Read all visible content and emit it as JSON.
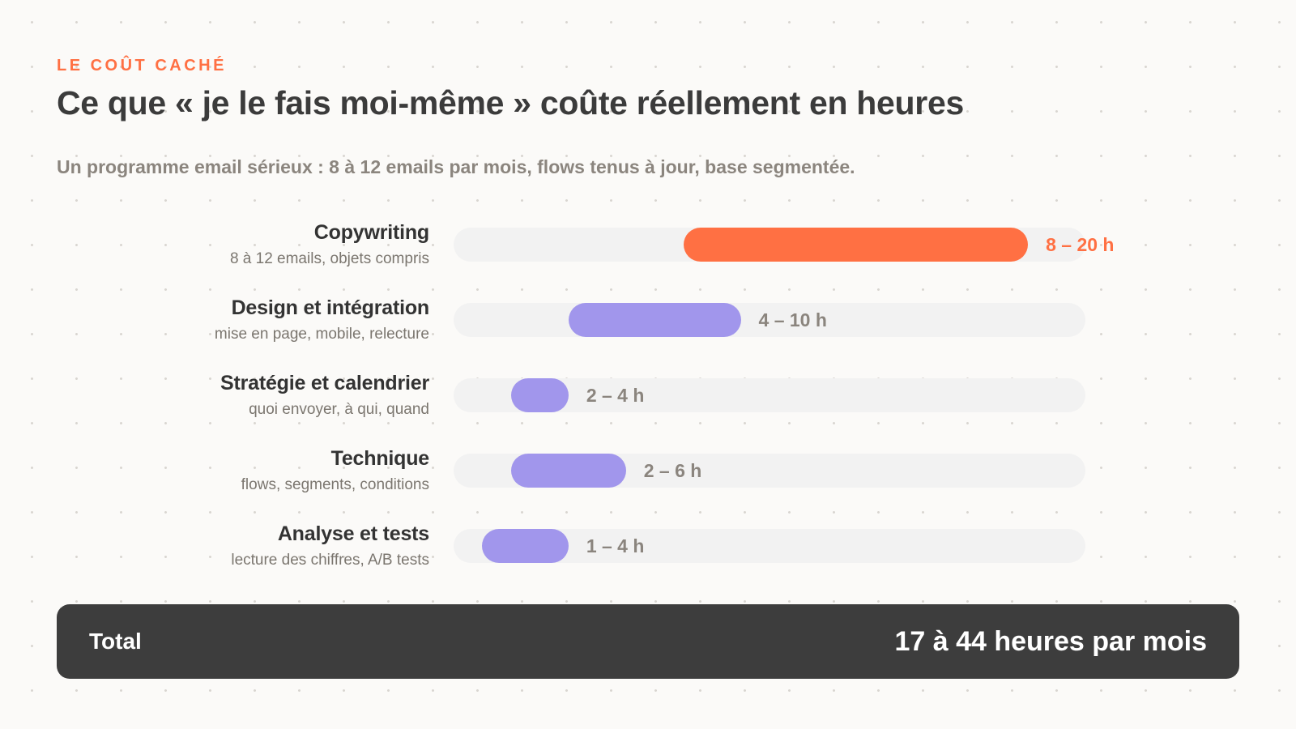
{
  "header": {
    "eyebrow": "LE COÛT CACHÉ",
    "title": "Ce que « je le fais moi-même » coûte réellement en heures",
    "subtitle": "Un programme email sérieux : 8 à 12 emails par mois, flows tenus à jour, base segmentée."
  },
  "colors": {
    "accent": "#ff7043",
    "bar_default": "#a196ec",
    "track": "#f2f2f2",
    "value_default": "#8b857e",
    "total_bg": "#3d3d3d"
  },
  "chart_data": {
    "type": "bar",
    "orientation": "horizontal-range",
    "unit": "h",
    "xlim": [
      0,
      22
    ],
    "grid": false,
    "categories": [
      {
        "name": "Copywriting",
        "description": "8 à 12 emails, objets compris",
        "min": 8,
        "max": 20,
        "label": "8 – 20 h",
        "highlight": true
      },
      {
        "name": "Design et intégration",
        "description": "mise en page, mobile, relecture",
        "min": 4,
        "max": 10,
        "label": "4 – 10 h",
        "highlight": false
      },
      {
        "name": "Stratégie et calendrier",
        "description": "quoi envoyer, à qui, quand",
        "min": 2,
        "max": 4,
        "label": "2 – 4 h",
        "highlight": false
      },
      {
        "name": "Technique",
        "description": "flows, segments, conditions",
        "min": 2,
        "max": 6,
        "label": "2 – 6 h",
        "highlight": false
      },
      {
        "name": "Analyse et tests",
        "description": "lecture des chiffres, A/B tests",
        "min": 1,
        "max": 4,
        "label": "1 – 4 h",
        "highlight": false
      }
    ]
  },
  "total": {
    "label": "Total",
    "value": "17 à 44 heures par mois"
  }
}
